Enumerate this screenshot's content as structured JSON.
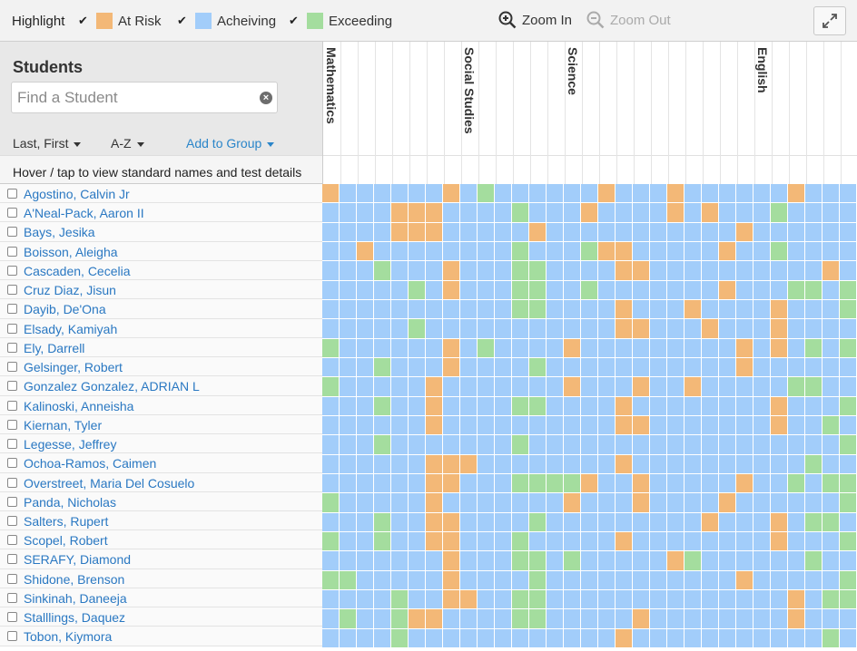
{
  "toolbar": {
    "highlight_label": "Highlight",
    "legend": [
      {
        "label": "At Risk",
        "color": "#f3b877",
        "checked": true
      },
      {
        "label": "Acheiving",
        "color": "#a2cdfa",
        "checked": true
      },
      {
        "label": "Exceeding",
        "color": "#a4dd9e",
        "checked": true
      }
    ],
    "zoom_in_label": "Zoom In",
    "zoom_out_label": "Zoom Out",
    "expand_icon": "expand-icon"
  },
  "sidebar": {
    "title": "Students",
    "search": {
      "placeholder": "Find a Student",
      "value": ""
    },
    "sort_name": "Last, First",
    "sort_order": "A-Z",
    "add_group": "Add to Group",
    "hint": "Hover / tap to view standard names and test details"
  },
  "subjects": [
    "Mathematics",
    "Social Studies",
    "Science",
    "English"
  ],
  "students": [
    "Agostino, Calvin Jr",
    "A'Neal-Pack, Aaron II",
    "Bays, Jesika",
    "Boisson, Aleigha",
    "Cascaden, Cecelia",
    "Cruz Diaz, Jisun",
    "Dayib, De'Ona",
    "Elsady, Kamiyah",
    "Ely, Darrell",
    "Gelsinger, Robert",
    "Gonzalez Gonzalez, ADRIAN L",
    "Kalinoski, Anneisha",
    "Kiernan, Tyler",
    "Legesse, Jeffrey",
    "Ochoa-Ramos, Caimen",
    "Overstreet, Maria Del Cosuelo",
    "Panda, Nicholas",
    "Salters, Rupert",
    "Scopel, Robert",
    "SERAFY, Diamond",
    "Shidone, Brenson",
    "Sinkinah, Daneeja",
    "Stalllings, Daquez",
    "Tobon, Kiymora"
  ],
  "chart_data": {
    "type": "heatmap",
    "legend": {
      "R": "At Risk",
      "A": "Acheiving",
      "E": "Exceeding"
    },
    "colors": {
      "R": "#f3b877",
      "A": "#a2cdfa",
      "E": "#a4dd9e"
    },
    "column_groups": [
      {
        "name": "Mathematics",
        "start_col": 0
      },
      {
        "name": "Social Studies",
        "start_col": 8
      },
      {
        "name": "Science",
        "start_col": 14
      },
      {
        "name": "English",
        "start_col": 25
      }
    ],
    "rows": [
      "RAAAAAARAEAAAAAARAAARAAAAAARAAA",
      "AAAARRRAAAAEAAARAAAARARAAAEAAAA",
      "AAAARRRAAAAARAAAAAAAAAAARAAAAAA",
      "AARAAAAAAAAEAAAERRAAAAARAAEAAAA",
      "AAAEAAARAAAEEAAAARRAAAAAAAAAARA",
      "AAAAAEARAAAEEAAEAAAAAAARAAAEEAE",
      "AAAAAAAAAAAEEAAAARAAARAAAARAAAE",
      "AAAAAEAAAAAAAAAAARRAAARAAARAAAA",
      "EAAAAAARAEAAAARAAAAAAAAARARAEAE",
      "AAAEAAARAAAAEAAAAAAAAAAARAAAAAA",
      "EAAAAARAAAAAAARAAARAARAAAAAEEAA",
      "AAAEAARAAAAEEAAAARAAAAAAAARAAAE",
      "AAAAAARAAAAAAAAAARRAAAAAAARAAEA",
      "AAAEAAAAAAAEAAAAAAAAAAAAAAAAAAE",
      "AAAAAARRRAAAAAAAARAAAAAAAAAAEAA",
      "AAAAAARRAAAEEEERAARAAAAARAAEAEE",
      "EAAAAARAAAAAAARAAARAAAARAAAAAAE",
      "AAAEAARRAAAAEAAAAAAAAARAAARAEEA",
      "EAAEAARRAAAEAAAAARAAAAAAAARAAAE",
      "AAAAAAARAAAEEAEAAAAAREAAAAAAEAA",
      "EEAAAAARAAAAEAAAAAAAAAAARAAAAAE",
      "AAAAEAARRAAEEAAAAAAAAAAAAAARAEE",
      "AEAAERRAAAAEEAAAAARAAAAAAAARAAA",
      "AAAAEAAAAAAAAAAAARAAAAAAAAAAAEA"
    ]
  }
}
